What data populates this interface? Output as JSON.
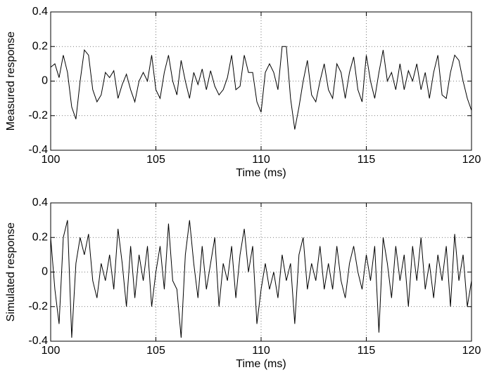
{
  "chart_data": [
    {
      "type": "line",
      "xlabel": "Time (ms)",
      "ylabel": "Measured response",
      "xlim": [
        100,
        120
      ],
      "xticks": [
        100,
        105,
        110,
        115,
        120
      ],
      "ylim": [
        -0.4,
        0.4
      ],
      "yticks": [
        -0.4,
        -0.2,
        0,
        0.2,
        0.4
      ],
      "grid": true,
      "x": [
        100.0,
        100.2,
        100.4,
        100.6,
        100.8,
        101.0,
        101.2,
        101.4,
        101.6,
        101.8,
        102.0,
        102.2,
        102.4,
        102.6,
        102.8,
        103.0,
        103.2,
        103.4,
        103.6,
        103.8,
        104.0,
        104.2,
        104.4,
        104.6,
        104.8,
        105.0,
        105.2,
        105.4,
        105.6,
        105.8,
        106.0,
        106.2,
        106.4,
        106.6,
        106.8,
        107.0,
        107.2,
        107.4,
        107.6,
        107.8,
        108.0,
        108.2,
        108.4,
        108.6,
        108.8,
        109.0,
        109.2,
        109.4,
        109.6,
        109.8,
        110.0,
        110.2,
        110.4,
        110.6,
        110.8,
        111.0,
        111.2,
        111.4,
        111.6,
        111.8,
        112.0,
        112.2,
        112.4,
        112.6,
        112.8,
        113.0,
        113.2,
        113.4,
        113.6,
        113.8,
        114.0,
        114.2,
        114.4,
        114.6,
        114.8,
        115.0,
        115.2,
        115.4,
        115.6,
        115.8,
        116.0,
        116.2,
        116.4,
        116.6,
        116.8,
        117.0,
        117.2,
        117.4,
        117.6,
        117.8,
        118.0,
        118.2,
        118.4,
        118.6,
        118.8,
        119.0,
        119.2,
        119.4,
        119.6,
        119.8,
        120.0
      ],
      "series": [
        {
          "color": "#000000",
          "values": [
            0.08,
            0.1,
            0.02,
            0.15,
            0.05,
            -0.15,
            -0.22,
            0.0,
            0.18,
            0.15,
            -0.05,
            -0.12,
            -0.08,
            0.05,
            0.02,
            0.06,
            -0.1,
            -0.02,
            0.04,
            -0.05,
            -0.12,
            0.0,
            0.05,
            0.0,
            0.15,
            -0.05,
            -0.1,
            0.05,
            0.15,
            0.0,
            -0.08,
            0.12,
            0.0,
            -0.1,
            0.05,
            -0.02,
            0.07,
            -0.05,
            0.06,
            -0.03,
            -0.08,
            -0.05,
            0.02,
            0.15,
            -0.05,
            -0.03,
            0.15,
            0.05,
            0.05,
            -0.12,
            -0.18,
            0.05,
            0.1,
            0.05,
            -0.05,
            0.2,
            0.2,
            -0.1,
            -0.28,
            -0.15,
            0.0,
            0.12,
            -0.08,
            -0.12,
            0.0,
            0.1,
            -0.05,
            -0.1,
            0.1,
            0.05,
            -0.1,
            0.05,
            0.14,
            -0.05,
            -0.12,
            0.15,
            0.0,
            -0.1,
            0.05,
            0.18,
            0.0,
            0.05,
            -0.05,
            0.1,
            -0.05,
            0.06,
            0.0,
            0.1,
            -0.05,
            0.05,
            -0.1,
            0.05,
            0.15,
            -0.08,
            -0.1,
            0.05,
            0.15,
            0.12,
            0.0,
            -0.1,
            -0.17
          ]
        }
      ]
    },
    {
      "type": "line",
      "xlabel": "Time (ms)",
      "ylabel": "Simulated response",
      "xlim": [
        100,
        120
      ],
      "xticks": [
        100,
        105,
        110,
        115,
        120
      ],
      "ylim": [
        -0.4,
        0.4
      ],
      "yticks": [
        -0.4,
        -0.2,
        0,
        0.2,
        0.4
      ],
      "grid": true,
      "x": [
        100.0,
        100.2,
        100.4,
        100.6,
        100.8,
        101.0,
        101.2,
        101.4,
        101.6,
        101.8,
        102.0,
        102.2,
        102.4,
        102.6,
        102.8,
        103.0,
        103.2,
        103.4,
        103.6,
        103.8,
        104.0,
        104.2,
        104.4,
        104.6,
        104.8,
        105.0,
        105.2,
        105.4,
        105.6,
        105.8,
        106.0,
        106.2,
        106.4,
        106.6,
        106.8,
        107.0,
        107.2,
        107.4,
        107.6,
        107.8,
        108.0,
        108.2,
        108.4,
        108.6,
        108.8,
        109.0,
        109.2,
        109.4,
        109.6,
        109.8,
        110.0,
        110.2,
        110.4,
        110.6,
        110.8,
        111.0,
        111.2,
        111.4,
        111.6,
        111.8,
        112.0,
        112.2,
        112.4,
        112.6,
        112.8,
        113.0,
        113.2,
        113.4,
        113.6,
        113.8,
        114.0,
        114.2,
        114.4,
        114.6,
        114.8,
        115.0,
        115.2,
        115.4,
        115.6,
        115.8,
        116.0,
        116.2,
        116.4,
        116.6,
        116.8,
        117.0,
        117.2,
        117.4,
        117.6,
        117.8,
        118.0,
        118.2,
        118.4,
        118.6,
        118.8,
        119.0,
        119.2,
        119.4,
        119.6,
        119.8,
        120.0
      ],
      "series": [
        {
          "color": "#000000",
          "values": [
            0.2,
            -0.1,
            -0.3,
            0.2,
            0.3,
            -0.38,
            0.05,
            0.2,
            0.1,
            0.22,
            -0.05,
            -0.15,
            0.05,
            -0.05,
            0.1,
            -0.1,
            0.25,
            0.05,
            -0.2,
            0.15,
            -0.15,
            0.1,
            -0.05,
            0.15,
            -0.2,
            0.0,
            0.15,
            -0.1,
            0.28,
            -0.05,
            -0.1,
            -0.38,
            0.1,
            0.3,
            0.05,
            -0.15,
            0.15,
            -0.1,
            0.05,
            0.2,
            -0.2,
            0.05,
            -0.05,
            0.15,
            -0.15,
            0.1,
            0.25,
            0.0,
            0.15,
            -0.3,
            -0.1,
            0.05,
            -0.1,
            0.0,
            -0.15,
            0.1,
            -0.05,
            0.05,
            -0.3,
            0.1,
            0.2,
            -0.1,
            0.05,
            -0.05,
            0.15,
            -0.1,
            0.05,
            -0.1,
            0.15,
            -0.05,
            -0.15,
            0.05,
            0.15,
            0.0,
            -0.1,
            0.1,
            -0.05,
            0.15,
            -0.35,
            0.2,
            0.05,
            -0.15,
            0.15,
            -0.05,
            0.1,
            -0.2,
            0.15,
            -0.05,
            0.2,
            -0.1,
            0.05,
            -0.15,
            0.1,
            -0.05,
            0.15,
            -0.2,
            0.22,
            -0.05,
            0.1,
            -0.2,
            -0.05
          ]
        }
      ]
    }
  ]
}
